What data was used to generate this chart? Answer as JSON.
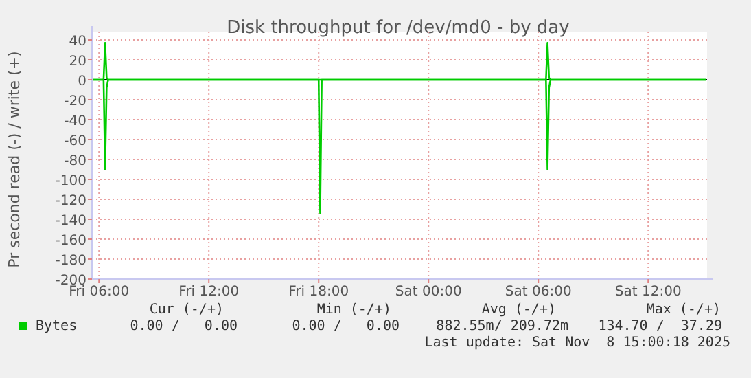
{
  "chart_data": {
    "type": "line",
    "title": "Disk throughput for /dev/md0 - by day",
    "ylabel": "Pr second read (-) / write (+)",
    "xlim": [
      "2025-11-07T05:37",
      "2025-11-08T15:13"
    ],
    "xticks": [
      {
        "value": "2025-11-07T06:00",
        "label": "Fri 06:00"
      },
      {
        "value": "2025-11-07T12:00",
        "label": "Fri 12:00"
      },
      {
        "value": "2025-11-07T18:00",
        "label": "Fri 18:00"
      },
      {
        "value": "2025-11-08T00:00",
        "label": "Sat 00:00"
      },
      {
        "value": "2025-11-08T06:00",
        "label": "Sat 06:00"
      },
      {
        "value": "2025-11-08T12:00",
        "label": "Sat 12:00"
      }
    ],
    "ylim": [
      -200,
      40
    ],
    "yticks": [
      40,
      20,
      0,
      -20,
      -40,
      -60,
      -80,
      -100,
      -120,
      -140,
      -160,
      -180,
      -200
    ],
    "grid": true,
    "legend": "bottom",
    "line_style": "solid",
    "ref_lines": [
      {
        "axis": "y",
        "value": 0,
        "color": "#000000"
      }
    ],
    "series": [
      {
        "name": "Bytes",
        "color": "#00cc00",
        "x": [
          "2025-11-07T05:40",
          "2025-11-07T06:10",
          "2025-11-07T06:15",
          "2025-11-07T06:20",
          "2025-11-07T06:25",
          "2025-11-07T06:30",
          "2025-11-07T17:55",
          "2025-11-07T18:00",
          "2025-11-07T18:05",
          "2025-11-07T18:10",
          "2025-11-08T06:25",
          "2025-11-08T06:30",
          "2025-11-08T06:35",
          "2025-11-08T06:40",
          "2025-11-08T15:10"
        ],
        "values": [
          0,
          0,
          0,
          37,
          2,
          0,
          0,
          0,
          0,
          0,
          0,
          37,
          2,
          0,
          0
        ]
      },
      {
        "color": "#00cc00",
        "x": [
          "2025-11-07T05:40",
          "2025-11-07T06:10",
          "2025-11-07T06:15",
          "2025-11-07T06:20",
          "2025-11-07T06:25",
          "2025-11-07T06:30",
          "2025-11-07T17:55",
          "2025-11-07T18:00",
          "2025-11-07T18:05",
          "2025-11-07T18:10",
          "2025-11-08T06:25",
          "2025-11-08T06:30",
          "2025-11-08T06:35",
          "2025-11-08T06:40",
          "2025-11-08T15:10"
        ],
        "values": [
          0,
          0,
          0,
          -90,
          -8,
          0,
          0,
          0,
          -134,
          0,
          0,
          -90,
          -8,
          0,
          0
        ]
      }
    ],
    "annotations": [
      "Cur (-/+)",
      "Min (-/+)",
      "Avg (-/+)",
      "Max (-/+)",
      "0.00 /   0.00",
      "0.00 /   0.00",
      "882.55m/ 209.72m",
      "134.70 /  37.29",
      "Last update: Sat Nov  8 15:00:18 2025"
    ]
  }
}
